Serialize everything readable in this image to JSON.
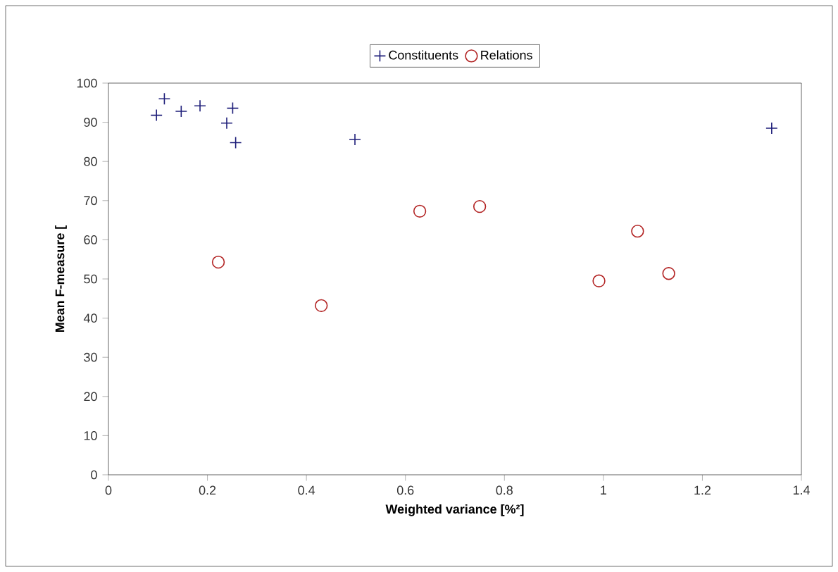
{
  "chart_data": {
    "type": "scatter",
    "xlabel": "Weighted variance [%²]",
    "ylabel": "Mean F-measure [",
    "xlim": [
      0,
      1.4
    ],
    "xticks": [
      0,
      0.2,
      0.4,
      0.6,
      0.8,
      1,
      1.2,
      1.4
    ],
    "ylim": [
      0,
      100
    ],
    "yticks": [
      0,
      10,
      20,
      30,
      40,
      50,
      60,
      70,
      80,
      90,
      100
    ],
    "grid": false,
    "legend": "top",
    "series": [
      {
        "name": "Constituents",
        "color": "#1f1f7a",
        "marker": "cross",
        "x": [
          0.097,
          0.113,
          0.147,
          0.185,
          0.251,
          0.239,
          0.257,
          0.498,
          1.34
        ],
        "values": [
          91.8,
          96.0,
          92.8,
          94.2,
          93.6,
          89.8,
          84.8,
          85.6,
          88.5
        ]
      },
      {
        "name": "Relations",
        "color": "#b22222",
        "marker": "circle",
        "x": [
          0.222,
          0.43,
          0.629,
          0.75,
          0.991,
          1.069,
          1.132
        ],
        "values": [
          54.3,
          43.2,
          67.3,
          68.5,
          49.5,
          62.2,
          51.4
        ]
      }
    ]
  }
}
